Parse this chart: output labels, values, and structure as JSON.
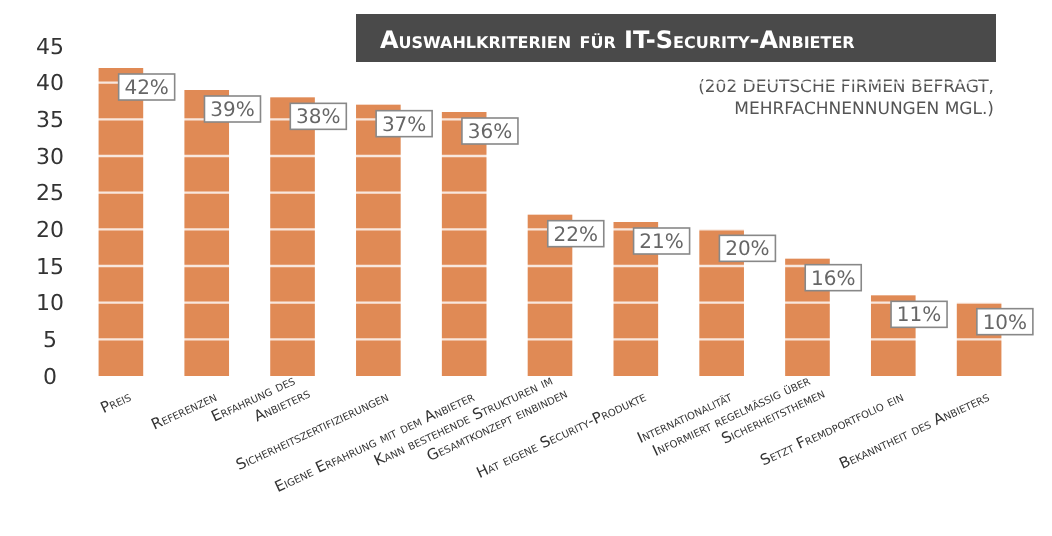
{
  "chart_data": {
    "type": "bar",
    "title": "Auswahlkriterien für IT-Security-Anbieter",
    "subtitle": "(202 DEUTSCHE FIRMEN BEFRAGT,\nMEHRFACHNENNUNGEN MGL.)",
    "categories": [
      "Preis",
      "Referenzen",
      "Erfahrung des\nAnbieters",
      "Sicherheitszertifizierungen",
      "Eigene Erfahrung mit dem Anbieter",
      "Kann bestehende Strukturen im\nGesamtkonzept einbinden",
      "Hat eigene Security-Produkte",
      "Internationalität",
      "Informiert regelmäßig über\nSicherheitsthemen",
      "Setzt Fremdportfolio ein",
      "Bekanntheit des Anbieters"
    ],
    "values": [
      42,
      39,
      38,
      37,
      36,
      22,
      21,
      20,
      16,
      11,
      10
    ],
    "value_labels": [
      "42%",
      "39%",
      "38%",
      "37%",
      "36%",
      "22%",
      "21%",
      "20%",
      "16%",
      "11%",
      "10%"
    ],
    "color": "#e08a55",
    "ylim": [
      0,
      45
    ],
    "yticks": [
      0,
      5,
      10,
      15,
      20,
      25,
      30,
      35,
      40,
      45
    ],
    "grid": "y"
  }
}
